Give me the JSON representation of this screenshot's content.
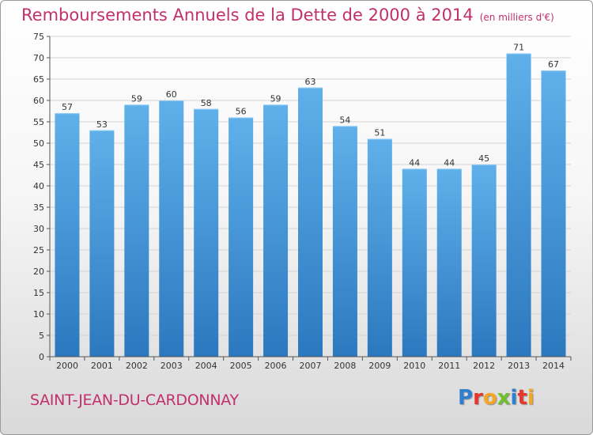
{
  "header": {
    "title": "Remboursements Annuels de la Dette de 2000 à 2014",
    "unit": "(en milliers d'€)"
  },
  "footer": {
    "commune": "SAINT-JEAN-DU-CARDONNAY",
    "logo": [
      "P",
      "r",
      "o",
      "x",
      "i",
      "t",
      "i"
    ],
    "logo_colors": [
      "#2e7fcf",
      "#e8352b",
      "#f5a623",
      "#6fbf2a",
      "#2e7fcf",
      "#e8352b",
      "#f5a623"
    ]
  },
  "colors": {
    "bar_top": "#5fb0ea",
    "bar_bottom": "#2c78bf",
    "title": "#c0306b"
  },
  "chart_data": {
    "type": "bar",
    "title": "Remboursements Annuels de la Dette de 2000 à 2014",
    "categories": [
      "2000",
      "2001",
      "2002",
      "2003",
      "2004",
      "2005",
      "2006",
      "2007",
      "2008",
      "2009",
      "2010",
      "2011",
      "2012",
      "2013",
      "2014"
    ],
    "values": [
      57,
      53,
      59,
      60,
      58,
      56,
      59,
      63,
      54,
      51,
      44,
      44,
      45,
      71,
      67
    ],
    "ylim": [
      0,
      75
    ],
    "yticks": [
      0,
      5,
      10,
      15,
      20,
      25,
      30,
      35,
      40,
      45,
      50,
      55,
      60,
      65,
      70,
      75
    ],
    "grid": true,
    "xlabel": "",
    "ylabel": ""
  }
}
